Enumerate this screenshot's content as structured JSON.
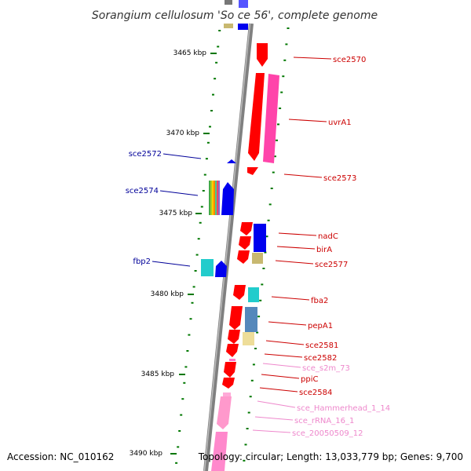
{
  "title": "Sorangium cellulosum 'So ce 56', complete genome",
  "footer": {
    "accession": "Accession: NC_010162",
    "summary": "Topology: circular; Length: 13,033,779 bp; Genes: 9,700"
  },
  "scale_marks": [
    "3465 kbp",
    "3470 kbp",
    "3475 kbp",
    "3480 kbp",
    "3485 kbp",
    "3490 kbp"
  ],
  "colors": {
    "cds_red": "#ff0000",
    "cds_blue": "#0000ee",
    "trna_pink": "#ff77cc",
    "gold": "#c8b870",
    "cyan": "#22cccc",
    "backbone": "#808080",
    "tick_green": "#007700",
    "label_red": "#cc0000",
    "label_blue": "#000099",
    "label_pink": "#ee88cc"
  },
  "labels_right": [
    {
      "text": "sce2570",
      "color": "#cc0000"
    },
    {
      "text": "uvrA1",
      "color": "#cc0000"
    },
    {
      "text": "sce2573",
      "color": "#cc0000"
    },
    {
      "text": "nadC",
      "color": "#cc0000"
    },
    {
      "text": "birA",
      "color": "#cc0000"
    },
    {
      "text": "sce2577",
      "color": "#cc0000"
    },
    {
      "text": "fba2",
      "color": "#cc0000"
    },
    {
      "text": "pepA1",
      "color": "#cc0000"
    },
    {
      "text": "sce2581",
      "color": "#cc0000"
    },
    {
      "text": "sce2582",
      "color": "#cc0000"
    },
    {
      "text": "sce_s2m_73",
      "color": "#ee88cc"
    },
    {
      "text": "ppiC",
      "color": "#cc0000"
    },
    {
      "text": "sce2584",
      "color": "#cc0000"
    },
    {
      "text": "sce_Hammerhead_1_14",
      "color": "#ee88cc"
    },
    {
      "text": "sce_rRNA_16_1",
      "color": "#ee88cc"
    },
    {
      "text": "sce_20050509_12",
      "color": "#ee88cc"
    }
  ],
  "labels_left": [
    {
      "text": "sce2572",
      "color": "#000099"
    },
    {
      "text": "sce2574",
      "color": "#000099"
    },
    {
      "text": "fbp2",
      "color": "#000099"
    }
  ]
}
